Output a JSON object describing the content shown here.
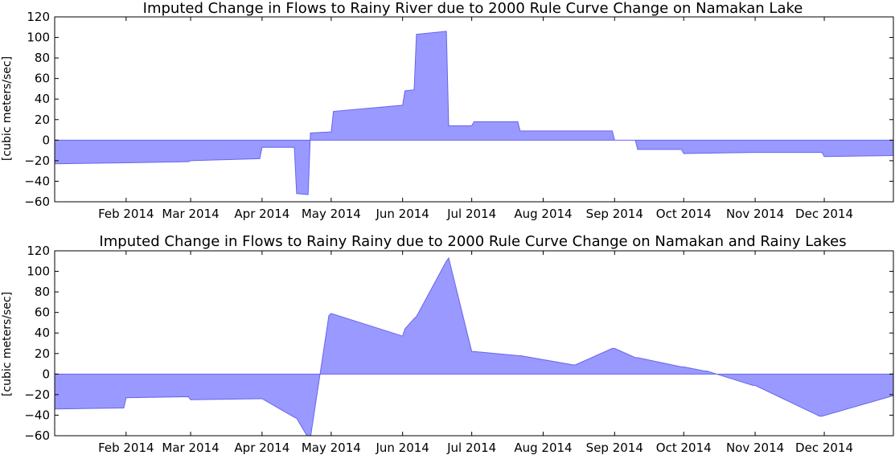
{
  "chart_data": [
    {
      "type": "area",
      "title": "Imputed Change in Flows to Rainy River due to 2000 Rule Curve Change on Namakan Lake",
      "ylabel": "[cubic meters/sec]",
      "xlabel": "",
      "xlim": [
        "2014-01-01",
        "2014-12-31"
      ],
      "ylim": [
        -60,
        120
      ],
      "yticks": [
        -60,
        -40,
        -20,
        0,
        20,
        40,
        60,
        80,
        100,
        120
      ],
      "xtick_labels": [
        {
          "date": "2014-02-01",
          "label": "Feb 2014"
        },
        {
          "date": "2014-03-01",
          "label": "Mar 2014"
        },
        {
          "date": "2014-04-01",
          "label": "Apr 2014"
        },
        {
          "date": "2014-05-01",
          "label": "May 2014"
        },
        {
          "date": "2014-06-01",
          "label": "Jun 2014"
        },
        {
          "date": "2014-07-01",
          "label": "Jul 2014"
        },
        {
          "date": "2014-08-01",
          "label": "Aug 2014"
        },
        {
          "date": "2014-09-01",
          "label": "Sep 2014"
        },
        {
          "date": "2014-10-01",
          "label": "Oct 2014"
        },
        {
          "date": "2014-11-01",
          "label": "Nov 2014"
        },
        {
          "date": "2014-12-01",
          "label": "Dec 2014"
        }
      ],
      "grid": false,
      "fill_color": "#9999ff",
      "edge_color": "#6666ee",
      "series": [
        {
          "x": [
            "2014-01-01",
            "2014-02-01",
            "2014-02-28",
            "2014-03-01",
            "2014-03-31",
            "2014-04-01",
            "2014-04-15",
            "2014-04-16",
            "2014-04-21",
            "2014-04-22",
            "2014-05-01",
            "2014-05-02",
            "2014-06-01",
            "2014-06-02",
            "2014-06-06",
            "2014-06-07",
            "2014-06-20",
            "2014-06-21",
            "2014-07-01",
            "2014-07-02",
            "2014-07-21",
            "2014-07-22",
            "2014-08-31",
            "2014-09-01",
            "2014-09-10",
            "2014-09-11",
            "2014-09-30",
            "2014-10-01",
            "2014-10-31",
            "2014-11-01",
            "2014-11-30",
            "2014-12-01",
            "2014-12-31"
          ],
          "y": [
            -23,
            -22,
            -21,
            -20,
            -18,
            -7,
            -7,
            -52,
            -53,
            7,
            8,
            28,
            34,
            48,
            49,
            103,
            106,
            14,
            14,
            18,
            18,
            9,
            9,
            0,
            0,
            -9,
            -9,
            -13,
            -12,
            -12,
            -12,
            -16,
            -15
          ]
        }
      ]
    },
    {
      "type": "area",
      "title": "Imputed Change in Flows to Rainy Rainy due to 2000 Rule Curve Change on Namakan and Rainy Lakes",
      "ylabel": "[cubic meters/sec]",
      "xlabel": "",
      "xlim": [
        "2014-01-01",
        "2014-12-31"
      ],
      "ylim": [
        -60,
        120
      ],
      "yticks": [
        -60,
        -40,
        -20,
        0,
        20,
        40,
        60,
        80,
        100,
        120
      ],
      "xtick_labels": [
        {
          "date": "2014-02-01",
          "label": "Feb 2014"
        },
        {
          "date": "2014-03-01",
          "label": "Mar 2014"
        },
        {
          "date": "2014-04-01",
          "label": "Apr 2014"
        },
        {
          "date": "2014-05-01",
          "label": "May 2014"
        },
        {
          "date": "2014-06-01",
          "label": "Jun 2014"
        },
        {
          "date": "2014-07-01",
          "label": "Jul 2014"
        },
        {
          "date": "2014-08-01",
          "label": "Aug 2014"
        },
        {
          "date": "2014-09-01",
          "label": "Sep 2014"
        },
        {
          "date": "2014-10-01",
          "label": "Oct 2014"
        },
        {
          "date": "2014-11-01",
          "label": "Nov 2014"
        },
        {
          "date": "2014-12-01",
          "label": "Dec 2014"
        }
      ],
      "grid": false,
      "fill_color": "#9999ff",
      "edge_color": "#6666ee",
      "series": [
        {
          "x": [
            "2014-01-01",
            "2014-01-31",
            "2014-02-01",
            "2014-02-28",
            "2014-03-01",
            "2014-03-31",
            "2014-04-01",
            "2014-04-15",
            "2014-04-16",
            "2014-04-21",
            "2014-04-22",
            "2014-04-30",
            "2014-05-01",
            "2014-06-01",
            "2014-06-02",
            "2014-06-06",
            "2014-06-07",
            "2014-06-20",
            "2014-06-21",
            "2014-07-01",
            "2014-07-02",
            "2014-07-21",
            "2014-07-22",
            "2014-08-14",
            "2014-08-15",
            "2014-08-31",
            "2014-09-01",
            "2014-09-10",
            "2014-09-11",
            "2014-09-30",
            "2014-10-01",
            "2014-10-10",
            "2014-10-11",
            "2014-10-31",
            "2014-11-01",
            "2014-11-29",
            "2014-11-30",
            "2014-12-31"
          ],
          "y": [
            -34,
            -33,
            -23,
            -22,
            -25,
            -24,
            -24,
            -42,
            -43,
            -62,
            -62,
            57,
            59,
            37,
            44,
            54,
            56,
            110,
            113,
            22,
            22,
            18,
            18,
            9,
            9,
            25,
            25,
            16,
            16,
            7,
            7,
            3,
            3,
            -11,
            -11,
            -41,
            -41,
            -21
          ]
        }
      ]
    }
  ]
}
